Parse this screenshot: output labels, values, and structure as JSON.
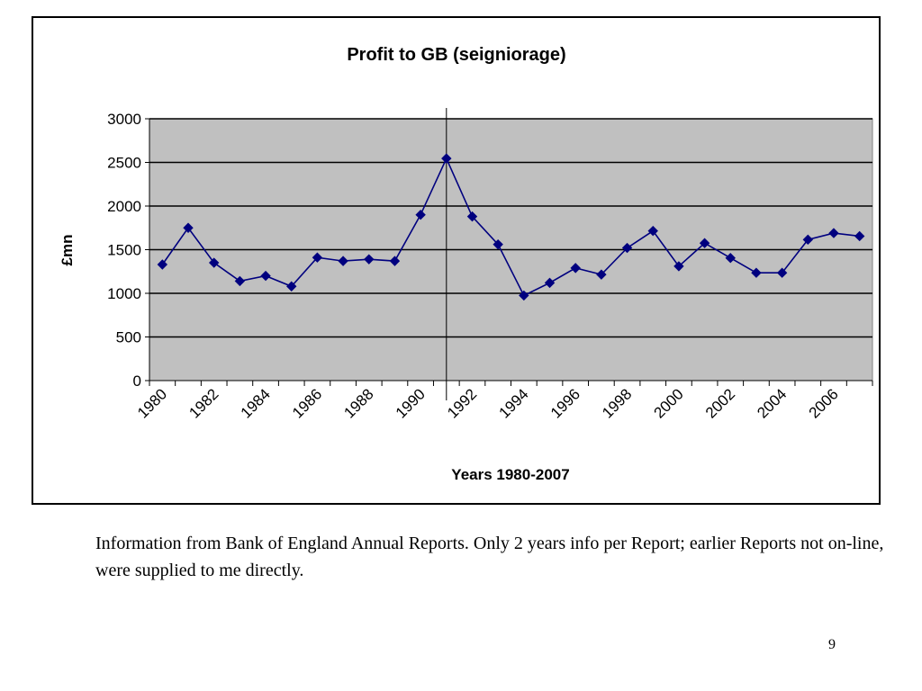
{
  "chart_data": {
    "type": "line",
    "title": "Profit to GB (seigniorage)",
    "xlabel": "Years 1980-2007",
    "ylabel": "£mn",
    "ylim": [
      0,
      3000
    ],
    "yticks": [
      0,
      500,
      1000,
      1500,
      2000,
      2500,
      3000
    ],
    "xticks": [
      "1980",
      "1982",
      "1984",
      "1986",
      "1988",
      "1990",
      "1992",
      "1994",
      "1996",
      "1998",
      "2000",
      "2002",
      "2004",
      "2006"
    ],
    "x": [
      1980,
      1981,
      1982,
      1983,
      1984,
      1985,
      1986,
      1987,
      1988,
      1989,
      1990,
      1991,
      1992,
      1993,
      1994,
      1995,
      1996,
      1997,
      1998,
      1999,
      2000,
      2001,
      2002,
      2003,
      2004,
      2005,
      2006,
      2007
    ],
    "series": [
      {
        "values": [
          1330,
          1750,
          1350,
          1140,
          1200,
          1080,
          1410,
          1370,
          1390,
          1370,
          1900,
          2545,
          1880,
          1560,
          975,
          1120,
          1290,
          1215,
          1520,
          1715,
          1310,
          1575,
          1405,
          1235,
          1235,
          1615,
          1690,
          1655
        ],
        "color": "#00007f"
      }
    ],
    "marker_vline_x": 1991,
    "grid": true,
    "plot_background": "#c0c0c0",
    "legend": "none"
  },
  "caption": "Information from Bank of England Annual Reports. Only 2 years info per Report; earlier Reports not on-line, were supplied to me directly.",
  "page_number": "9"
}
